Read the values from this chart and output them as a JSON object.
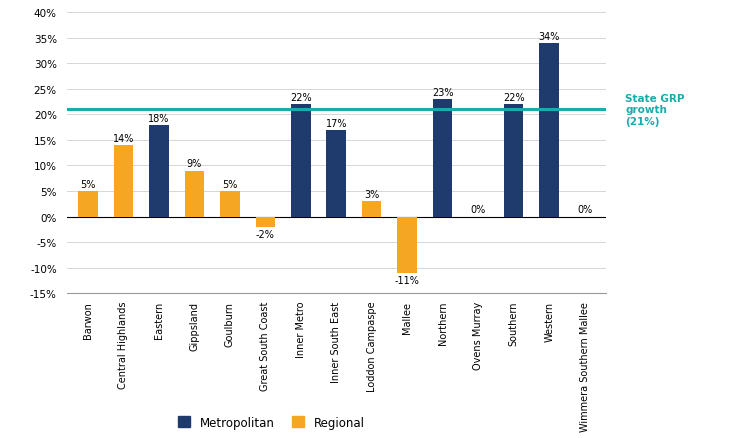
{
  "categories": [
    "Barwon",
    "Central Highlands",
    "Eastern",
    "Gippsland",
    "Goulburn",
    "Great South Coast",
    "Inner Metro",
    "Inner South East",
    "Loddon Campaspe",
    "Mallee",
    "Northern",
    "Ovens Murray",
    "Southern",
    "Western",
    "Wimmera Southern Mallee"
  ],
  "values": [
    5,
    14,
    18,
    9,
    5,
    -2,
    22,
    17,
    3,
    -11,
    23,
    0,
    22,
    34,
    0
  ],
  "types": [
    "Regional",
    "Regional",
    "Metropolitan",
    "Regional",
    "Regional",
    "Regional",
    "Metropolitan",
    "Metropolitan",
    "Regional",
    "Regional",
    "Metropolitan",
    "Regional",
    "Metropolitan",
    "Metropolitan",
    "Regional"
  ],
  "metro_color": "#1F3B6E",
  "regional_color": "#F5A623",
  "state_grp_value": 21,
  "state_grp_color": "#1AACAC",
  "state_grp_label": "State GRP\ngrowth\n(21%)",
  "ylim": [
    -15,
    40
  ],
  "yticks": [
    -15,
    -10,
    -5,
    0,
    5,
    10,
    15,
    20,
    25,
    30,
    35,
    40
  ],
  "figsize": [
    7.39,
    4.39
  ],
  "dpi": 100,
  "background_color": "#FFFFFF",
  "grid_color": "#D0D0D0",
  "label_fontsize": 7.0,
  "tick_fontsize": 7.5,
  "legend_fontsize": 8.5,
  "bar_width": 0.55,
  "value_label_fontsize": 7.0
}
